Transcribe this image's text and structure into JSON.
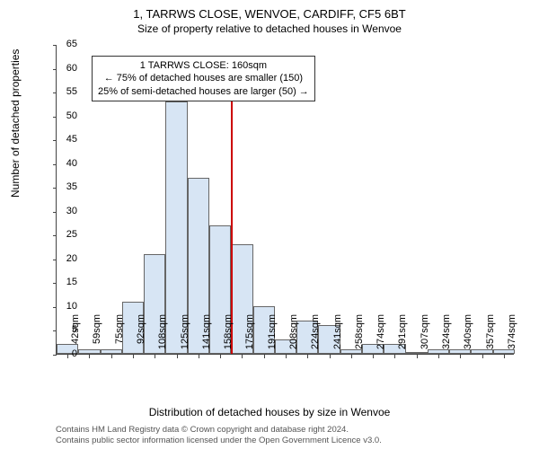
{
  "title": "1, TARRWS CLOSE, WENVOE, CARDIFF, CF5 6BT",
  "subtitle": "Size of property relative to detached houses in Wenvoe",
  "histogram": {
    "type": "histogram",
    "x_categories": [
      "42sqm",
      "59sqm",
      "75sqm",
      "92sqm",
      "108sqm",
      "125sqm",
      "141sqm",
      "158sqm",
      "175sqm",
      "191sqm",
      "208sqm",
      "224sqm",
      "241sqm",
      "258sqm",
      "274sqm",
      "291sqm",
      "307sqm",
      "324sqm",
      "340sqm",
      "357sqm",
      "374sqm"
    ],
    "values": [
      2,
      1,
      1,
      11,
      21,
      53,
      37,
      27,
      23,
      10,
      3,
      7,
      6,
      1,
      2,
      2,
      0,
      1,
      1,
      1,
      1
    ],
    "bar_fill": "#d7e5f4",
    "bar_border": "#666666",
    "background_color": "#ffffff",
    "ylabel": "Number of detached properties",
    "xlabel": "Distribution of detached houses by size in Wenvoe",
    "ylim": [
      0,
      65
    ],
    "ytick_step": 5,
    "bar_width_ratio": 1.0,
    "reference_line": {
      "x_index": 7,
      "color": "#cc0000",
      "width": 2
    }
  },
  "annotation": {
    "line1": "1 TARRWS CLOSE: 160sqm",
    "line2": "← 75% of detached houses are smaller (150)",
    "line3": "25% of semi-detached houses are larger (50) →",
    "border_color": "#333333"
  },
  "attribution": {
    "line1": "Contains HM Land Registry data © Crown copyright and database right 2024.",
    "line2": "Contains public sector information licensed under the Open Government Licence v3.0."
  },
  "label_fontsize": 12,
  "tick_fontsize": 11
}
